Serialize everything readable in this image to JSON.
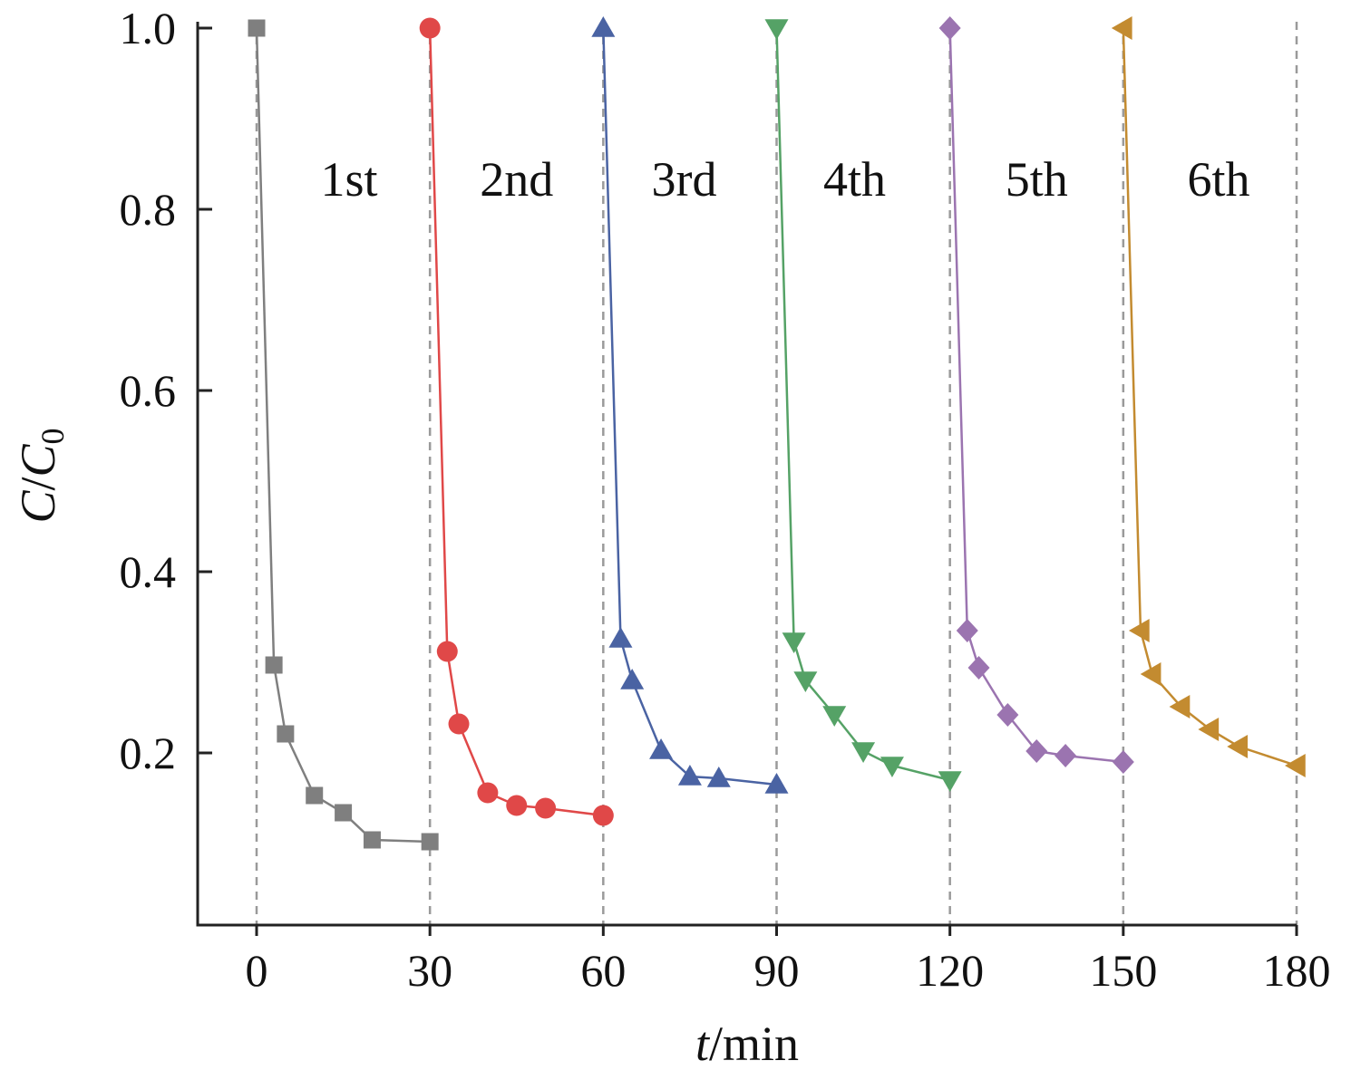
{
  "chart_data": {
    "type": "line",
    "title": "",
    "xlabel_var": "t",
    "xlabel_unit": "/min",
    "ylabel_var": "C",
    "ylabel_sep": "/",
    "ylabel_var2": "C",
    "ylabel_sub": "0",
    "xlim": [
      -10,
      180
    ],
    "ylim": [
      0.01,
      1.0
    ],
    "x_ticks": [
      0,
      30,
      60,
      90,
      120,
      150,
      180
    ],
    "x_tick_labels": [
      "0",
      "30",
      "60",
      "90",
      "120",
      "150",
      "180"
    ],
    "y_ticks": [
      0.2,
      0.4,
      0.6,
      0.8,
      1.0
    ],
    "y_tick_labels": [
      "0.2",
      "0.4",
      "0.6",
      "0.8",
      "1.0"
    ],
    "grid": false,
    "vertical_dashed_lines": [
      0,
      30,
      60,
      90,
      120,
      150,
      180
    ],
    "cycle_labels": [
      {
        "text": "1st",
        "x": 16,
        "y": 0.815
      },
      {
        "text": "2nd",
        "x": 45,
        "y": 0.815
      },
      {
        "text": "3rd",
        "x": 74,
        "y": 0.815
      },
      {
        "text": "4th",
        "x": 103.5,
        "y": 0.815
      },
      {
        "text": "5th",
        "x": 135,
        "y": 0.815
      },
      {
        "text": "6th",
        "x": 166.5,
        "y": 0.815
      }
    ],
    "series": [
      {
        "color": "#7f7f7f",
        "marker": "square",
        "x": [
          0,
          3,
          5,
          10,
          15,
          20,
          30
        ],
        "y": [
          1.0,
          0.297,
          0.221,
          0.153,
          0.134,
          0.104,
          0.102
        ]
      },
      {
        "color": "#e04848",
        "marker": "circle",
        "x": [
          30,
          33,
          35,
          40,
          45,
          50,
          60
        ],
        "y": [
          1.0,
          0.312,
          0.232,
          0.156,
          0.142,
          0.139,
          0.131
        ]
      },
      {
        "color": "#4a63a3",
        "marker": "triangle-up",
        "x": [
          60,
          63,
          65,
          70,
          75,
          80,
          90
        ],
        "y": [
          1.0,
          0.326,
          0.28,
          0.203,
          0.174,
          0.172,
          0.165
        ]
      },
      {
        "color": "#55a266",
        "marker": "triangle-down",
        "x": [
          90,
          93,
          95,
          100,
          105,
          110,
          120
        ],
        "y": [
          1.0,
          0.323,
          0.28,
          0.242,
          0.202,
          0.186,
          0.17
        ]
      },
      {
        "color": "#9b74b0",
        "marker": "diamond",
        "x": [
          120,
          123,
          125,
          130,
          135,
          140,
          150
        ],
        "y": [
          1.0,
          0.335,
          0.294,
          0.242,
          0.202,
          0.197,
          0.19
        ]
      },
      {
        "color": "#c38b30",
        "marker": "triangle-left",
        "x": [
          150,
          153,
          155,
          160,
          165,
          170,
          180
        ],
        "y": [
          1.0,
          0.335,
          0.287,
          0.251,
          0.226,
          0.207,
          0.186
        ]
      }
    ]
  }
}
